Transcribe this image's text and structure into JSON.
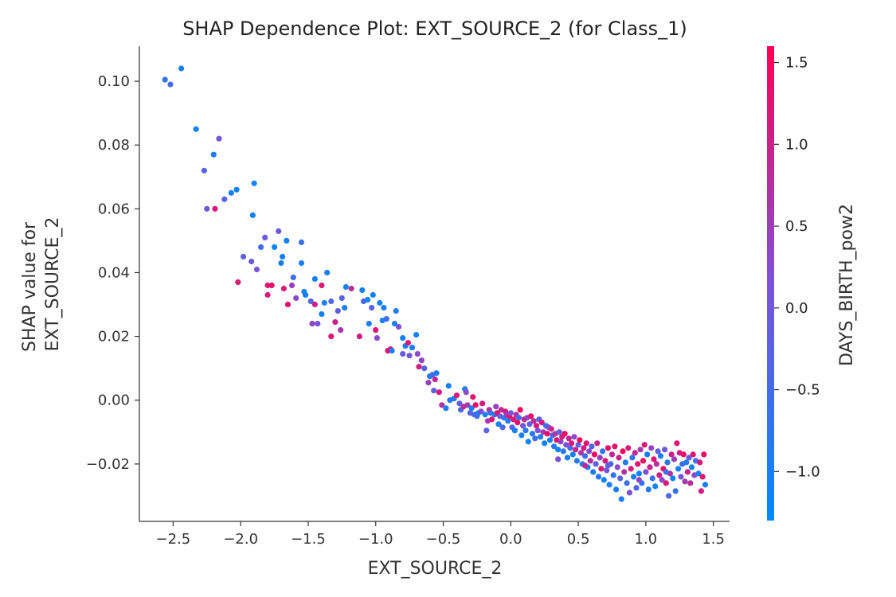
{
  "chart_data": {
    "type": "scatter",
    "title": "SHAP Dependence Plot: EXT_SOURCE_2 (for Class_1)",
    "xlabel": "EXT_SOURCE_2",
    "ylabel_lines": [
      "SHAP value for",
      "EXT_SOURCE_2"
    ],
    "xlim": [
      -2.75,
      1.62
    ],
    "ylim": [
      -0.038,
      0.111
    ],
    "xticks": [
      -2.5,
      -2.0,
      -1.5,
      -1.0,
      -0.5,
      0.0,
      0.5,
      1.0,
      1.5
    ],
    "xtick_labels": [
      "−2.5",
      "−2.0",
      "−1.5",
      "−1.0",
      "−0.5",
      "0.0",
      "0.5",
      "1.0",
      "1.5"
    ],
    "yticks": [
      -0.02,
      0.0,
      0.02,
      0.04,
      0.06,
      0.08,
      0.1
    ],
    "ytick_labels": [
      "−0.02",
      "0.00",
      "0.02",
      "0.04",
      "0.06",
      "0.08",
      "0.10"
    ],
    "grid": false,
    "colorbar": {
      "label": "DAYS_BIRTH_pow2",
      "range": [
        -1.3,
        1.6
      ],
      "ticks": [
        -1.0,
        -0.5,
        0.0,
        0.5,
        1.0,
        1.5
      ],
      "tick_labels": [
        "−1.0",
        "−0.5",
        "0.0",
        "0.5",
        "1.0",
        "1.5"
      ],
      "colors": [
        "#008afb",
        "#7c52d8",
        "#ff0052"
      ]
    },
    "points": [
      [
        -2.56,
        0.1005,
        -0.7
      ],
      [
        -2.52,
        0.099,
        -0.5
      ],
      [
        -2.44,
        0.104,
        -1.0
      ],
      [
        -2.33,
        0.085,
        -1.1
      ],
      [
        -2.27,
        0.072,
        -0.3
      ],
      [
        -2.25,
        0.06,
        0.0
      ],
      [
        -2.2,
        0.077,
        -1.0
      ],
      [
        -2.16,
        0.082,
        0.1
      ],
      [
        -2.19,
        0.06,
        1.2
      ],
      [
        -2.12,
        0.063,
        -0.3
      ],
      [
        -2.07,
        0.065,
        -1.0
      ],
      [
        -2.03,
        0.066,
        -1.1
      ],
      [
        -2.02,
        0.037,
        1.2
      ],
      [
        -1.98,
        0.045,
        -0.2
      ],
      [
        -1.92,
        0.0435,
        0.0
      ],
      [
        -1.9,
        0.068,
        -1.1
      ],
      [
        -1.91,
        0.058,
        -1.1
      ],
      [
        -1.88,
        0.041,
        0.1
      ],
      [
        -1.85,
        0.048,
        -0.5
      ],
      [
        -1.82,
        0.051,
        0.0
      ],
      [
        -1.8,
        0.036,
        1.2
      ],
      [
        -1.8,
        0.033,
        1.1
      ],
      [
        -1.77,
        0.036,
        1.4
      ],
      [
        -1.75,
        0.048,
        -1.1
      ],
      [
        -1.72,
        0.053,
        0.0
      ],
      [
        -1.7,
        0.043,
        -1.0
      ],
      [
        -1.69,
        0.045,
        -1.0
      ],
      [
        -1.68,
        0.035,
        1.2
      ],
      [
        -1.66,
        0.05,
        -1.1
      ],
      [
        -1.65,
        0.03,
        1.3
      ],
      [
        -1.62,
        0.036,
        0.5
      ],
      [
        -1.61,
        0.0385,
        -0.6
      ],
      [
        -1.59,
        0.032,
        0.3
      ],
      [
        -1.55,
        0.0495,
        -0.6
      ],
      [
        -1.55,
        0.043,
        -1.0
      ],
      [
        -1.53,
        0.034,
        -1.0
      ],
      [
        -1.52,
        0.033,
        -1.1
      ],
      [
        -1.48,
        0.031,
        -0.3
      ],
      [
        -1.47,
        0.024,
        0.4
      ],
      [
        -1.45,
        0.038,
        -1.1
      ],
      [
        -1.45,
        0.03,
        1.0
      ],
      [
        -1.43,
        0.024,
        0.1
      ],
      [
        -1.4,
        0.027,
        -1.1
      ],
      [
        -1.4,
        0.036,
        1.2
      ],
      [
        -1.38,
        0.0305,
        -1.0
      ],
      [
        -1.36,
        0.04,
        -1.0
      ],
      [
        -1.33,
        0.02,
        1.2
      ],
      [
        -1.33,
        0.031,
        -0.4
      ],
      [
        -1.3,
        0.0245,
        1.0
      ],
      [
        -1.28,
        0.028,
        -0.2
      ],
      [
        -1.26,
        0.022,
        0.6
      ],
      [
        -1.25,
        0.032,
        -0.3
      ],
      [
        -1.22,
        0.0355,
        -1.1
      ],
      [
        -1.23,
        0.029,
        -1.0
      ],
      [
        -1.18,
        0.035,
        0.8
      ],
      [
        -1.12,
        0.02,
        1.1
      ],
      [
        -1.1,
        0.0345,
        -1.1
      ],
      [
        -1.09,
        0.031,
        -0.4
      ],
      [
        -1.06,
        0.0315,
        -1.1
      ],
      [
        -1.05,
        0.024,
        -1.0
      ],
      [
        -1.03,
        0.029,
        -0.3
      ],
      [
        -1.02,
        0.033,
        -1.1
      ],
      [
        -1.0,
        0.022,
        1.2
      ],
      [
        -0.99,
        0.0195,
        0.3
      ],
      [
        -0.97,
        0.0305,
        -1.1
      ],
      [
        -0.95,
        0.025,
        -1.0
      ],
      [
        -0.94,
        0.029,
        -1.0
      ],
      [
        -0.92,
        0.0255,
        -0.6
      ],
      [
        -0.91,
        0.0155,
        1.3
      ],
      [
        -0.89,
        0.016,
        1.1
      ],
      [
        -0.88,
        0.0155,
        -1.0
      ],
      [
        -0.86,
        0.024,
        -1.0
      ],
      [
        -0.85,
        0.028,
        -0.9
      ],
      [
        -0.83,
        0.023,
        0.1
      ],
      [
        -0.8,
        0.0195,
        -1.1
      ],
      [
        -0.78,
        0.017,
        -1.0
      ],
      [
        -0.76,
        0.018,
        1.2
      ],
      [
        -0.75,
        0.014,
        0.0
      ],
      [
        -0.73,
        0.0165,
        -1.0
      ],
      [
        -0.7,
        0.0205,
        -1.1
      ],
      [
        -0.69,
        0.0145,
        0.3
      ],
      [
        -0.68,
        0.0105,
        1.1
      ],
      [
        -0.66,
        0.0125,
        0.4
      ],
      [
        -0.64,
        0.01,
        -0.3
      ],
      [
        -0.61,
        0.0055,
        0.5
      ],
      [
        -0.6,
        0.0075,
        -0.9
      ],
      [
        -0.58,
        0.008,
        -0.4
      ],
      [
        -0.57,
        0.003,
        -0.2
      ],
      [
        -0.55,
        0.0085,
        -1.0
      ],
      [
        -0.53,
        0.0025,
        1.1
      ],
      [
        -0.51,
        -0.0015,
        0.7
      ],
      [
        -0.48,
        -0.0025,
        -1.0
      ],
      [
        -0.45,
        0.0,
        -1.0
      ],
      [
        -0.42,
        0.0005,
        -0.8
      ],
      [
        -0.4,
        0.0015,
        1.2
      ],
      [
        -0.37,
        -0.003,
        -0.5
      ],
      [
        -0.35,
        -0.002,
        0.9
      ],
      [
        -0.34,
        0.0035,
        -1.0
      ],
      [
        -0.33,
        0.0025,
        0.3
      ],
      [
        -0.32,
        -0.0015,
        0.6
      ],
      [
        -0.3,
        -0.004,
        -0.2
      ],
      [
        -0.29,
        -0.0025,
        -1.1
      ],
      [
        -0.28,
        0.001,
        1.3
      ],
      [
        -0.27,
        -0.0045,
        -0.5
      ],
      [
        -0.26,
        -0.0015,
        1.4
      ],
      [
        -0.25,
        -0.005,
        -0.6
      ],
      [
        -0.24,
        -0.004,
        -0.9
      ],
      [
        -0.22,
        -0.0035,
        0.2
      ],
      [
        -0.21,
        -0.001,
        1.1
      ],
      [
        -0.19,
        -0.0045,
        -1.0
      ],
      [
        -0.18,
        -0.0095,
        -0.3
      ],
      [
        -0.17,
        -0.0065,
        0.6
      ],
      [
        -0.16,
        -0.003,
        0.8
      ],
      [
        -0.15,
        -0.004,
        -0.7
      ],
      [
        -0.14,
        -0.006,
        1.2
      ],
      [
        -0.12,
        -0.0045,
        -1.0
      ],
      [
        -0.11,
        -0.002,
        0.4
      ],
      [
        -0.1,
        -0.004,
        1.3
      ],
      [
        -0.09,
        -0.0075,
        -1.1
      ],
      [
        -0.08,
        -0.005,
        0.0
      ],
      [
        -0.07,
        -0.003,
        0.9
      ],
      [
        -0.06,
        -0.0085,
        -0.4
      ],
      [
        -0.05,
        -0.0055,
        -0.8
      ],
      [
        -0.04,
        -0.0035,
        1.1
      ],
      [
        -0.03,
        -0.0045,
        0.5
      ],
      [
        -0.02,
        -0.0065,
        -1.0
      ],
      [
        -0.01,
        -0.005,
        1.3
      ],
      [
        0.0,
        -0.004,
        0.1
      ],
      [
        0.01,
        -0.0085,
        -0.3
      ],
      [
        0.02,
        -0.006,
        1.2
      ],
      [
        0.03,
        -0.0095,
        -1.0
      ],
      [
        0.04,
        -0.0045,
        0.7
      ],
      [
        0.05,
        -0.007,
        1.4
      ],
      [
        0.06,
        -0.0055,
        -0.6
      ],
      [
        0.07,
        -0.003,
        1.5
      ],
      [
        0.08,
        -0.011,
        -1.0
      ],
      [
        0.09,
        -0.008,
        0.0
      ],
      [
        0.1,
        -0.006,
        1.0
      ],
      [
        0.11,
        -0.0095,
        -0.8
      ],
      [
        0.12,
        -0.0055,
        0.4
      ],
      [
        0.13,
        -0.013,
        -1.1
      ],
      [
        0.14,
        -0.0075,
        -0.2
      ],
      [
        0.15,
        -0.005,
        1.3
      ],
      [
        0.16,
        -0.0105,
        -0.9
      ],
      [
        0.17,
        -0.0065,
        0.8
      ],
      [
        0.18,
        -0.012,
        -0.5
      ],
      [
        0.19,
        -0.008,
        1.1
      ],
      [
        0.2,
        -0.0095,
        0.2
      ],
      [
        0.21,
        -0.006,
        -0.3
      ],
      [
        0.22,
        -0.0115,
        -1.0
      ],
      [
        0.23,
        -0.007,
        1.2
      ],
      [
        0.24,
        -0.01,
        0.6
      ],
      [
        0.25,
        -0.0135,
        -1.1
      ],
      [
        0.26,
        -0.008,
        -0.7
      ],
      [
        0.27,
        -0.0105,
        1.4
      ],
      [
        0.28,
        -0.0085,
        0.0
      ],
      [
        0.29,
        -0.0125,
        -1.0
      ],
      [
        0.3,
        -0.009,
        1.0
      ],
      [
        0.31,
        -0.011,
        -0.4
      ],
      [
        0.32,
        -0.0145,
        -0.9
      ],
      [
        0.33,
        -0.0105,
        0.7
      ],
      [
        0.34,
        -0.0125,
        1.3
      ],
      [
        0.35,
        -0.0155,
        -1.1
      ],
      [
        0.36,
        -0.01,
        -0.2
      ],
      [
        0.37,
        -0.013,
        0.4
      ],
      [
        0.38,
        -0.0115,
        1.1
      ],
      [
        0.39,
        -0.016,
        -0.8
      ],
      [
        0.4,
        -0.0105,
        1.4
      ],
      [
        0.41,
        -0.014,
        0.1
      ],
      [
        0.42,
        -0.018,
        -1.0
      ],
      [
        0.43,
        -0.012,
        0.9
      ],
      [
        0.44,
        -0.015,
        -0.5
      ],
      [
        0.45,
        -0.0135,
        1.2
      ],
      [
        0.46,
        -0.017,
        -1.1
      ],
      [
        0.47,
        -0.0115,
        0.3
      ],
      [
        0.48,
        -0.0155,
        1.0
      ],
      [
        0.49,
        -0.019,
        -0.9
      ],
      [
        0.5,
        -0.014,
        -0.3
      ],
      [
        0.51,
        -0.0125,
        1.5
      ],
      [
        0.52,
        -0.0165,
        0.6
      ],
      [
        0.53,
        -0.02,
        -1.0
      ],
      [
        0.54,
        -0.015,
        1.1
      ],
      [
        0.55,
        -0.0175,
        -0.6
      ],
      [
        0.56,
        -0.0135,
        1.3
      ],
      [
        0.57,
        -0.021,
        -1.1
      ],
      [
        0.58,
        -0.016,
        0.2
      ],
      [
        0.59,
        -0.019,
        0.8
      ],
      [
        0.6,
        -0.0145,
        -0.4
      ],
      [
        0.61,
        -0.0225,
        -1.0
      ],
      [
        0.62,
        -0.017,
        1.4
      ],
      [
        0.63,
        -0.02,
        -0.2
      ],
      [
        0.64,
        -0.0135,
        1.0
      ],
      [
        0.65,
        -0.024,
        -0.9
      ],
      [
        0.66,
        -0.018,
        0.5
      ],
      [
        0.67,
        -0.0215,
        1.2
      ],
      [
        0.68,
        -0.016,
        -0.7
      ],
      [
        0.69,
        -0.025,
        -1.1
      ],
      [
        0.7,
        -0.019,
        1.1
      ],
      [
        0.71,
        -0.022,
        0.0
      ],
      [
        0.72,
        -0.015,
        1.4
      ],
      [
        0.73,
        -0.0265,
        -1.0
      ],
      [
        0.74,
        -0.02,
        -0.5
      ],
      [
        0.75,
        -0.017,
        0.9
      ],
      [
        0.76,
        -0.0235,
        -0.8
      ],
      [
        0.77,
        -0.0145,
        1.3
      ],
      [
        0.78,
        -0.028,
        -1.1
      ],
      [
        0.79,
        -0.021,
        0.3
      ],
      [
        0.8,
        -0.018,
        1.0
      ],
      [
        0.81,
        -0.0245,
        -0.3
      ],
      [
        0.82,
        -0.031,
        -1.0
      ],
      [
        0.83,
        -0.016,
        1.5
      ],
      [
        0.84,
        -0.0225,
        0.7
      ],
      [
        0.85,
        -0.0195,
        -0.9
      ],
      [
        0.86,
        -0.026,
        -0.6
      ],
      [
        0.87,
        -0.015,
        1.2
      ],
      [
        0.88,
        -0.029,
        0.1
      ],
      [
        0.89,
        -0.0215,
        1.1
      ],
      [
        0.9,
        -0.018,
        -0.7
      ],
      [
        0.91,
        -0.024,
        -1.0
      ],
      [
        0.92,
        -0.0165,
        0.9
      ],
      [
        0.93,
        -0.0275,
        -0.4
      ],
      [
        0.94,
        -0.02,
        1.3
      ],
      [
        0.95,
        -0.023,
        -1.1
      ],
      [
        0.96,
        -0.0155,
        0.6
      ],
      [
        0.97,
        -0.026,
        -0.8
      ],
      [
        0.98,
        -0.019,
        1.4
      ],
      [
        0.99,
        -0.014,
        1.2
      ],
      [
        1.0,
        -0.0225,
        0.2
      ],
      [
        1.01,
        -0.017,
        -1.0
      ],
      [
        1.02,
        -0.028,
        -0.9
      ],
      [
        1.03,
        -0.021,
        1.0
      ],
      [
        1.04,
        -0.015,
        0.4
      ],
      [
        1.05,
        -0.0245,
        -0.6
      ],
      [
        1.06,
        -0.0185,
        1.3
      ],
      [
        1.07,
        -0.027,
        -1.1
      ],
      [
        1.08,
        -0.02,
        0.8
      ],
      [
        1.09,
        -0.016,
        -0.2
      ],
      [
        1.1,
        -0.0235,
        1.1
      ],
      [
        1.11,
        -0.0175,
        -1.0
      ],
      [
        1.12,
        -0.025,
        0.3
      ],
      [
        1.13,
        -0.0215,
        1.4
      ],
      [
        1.14,
        -0.0155,
        0.0
      ],
      [
        1.15,
        -0.026,
        1.2
      ],
      [
        1.16,
        -0.0195,
        -0.8
      ],
      [
        1.17,
        -0.03,
        -0.4
      ],
      [
        1.18,
        -0.023,
        0.7
      ],
      [
        1.19,
        -0.017,
        1.0
      ],
      [
        1.2,
        -0.0245,
        -1.1
      ],
      [
        1.21,
        -0.0185,
        0.5
      ],
      [
        1.22,
        -0.0285,
        -0.7
      ],
      [
        1.23,
        -0.0135,
        1.3
      ],
      [
        1.24,
        -0.0215,
        -1.0
      ],
      [
        1.25,
        -0.0165,
        1.1
      ],
      [
        1.26,
        -0.024,
        0.1
      ],
      [
        1.27,
        -0.02,
        -0.5
      ],
      [
        1.28,
        -0.017,
        1.4
      ],
      [
        1.29,
        -0.0255,
        0.6
      ],
      [
        1.3,
        -0.0195,
        -0.9
      ],
      [
        1.31,
        -0.0225,
        1.0
      ],
      [
        1.32,
        -0.018,
        -0.2
      ],
      [
        1.33,
        -0.026,
        0.8
      ],
      [
        1.34,
        -0.021,
        -1.1
      ],
      [
        1.35,
        -0.017,
        1.3
      ],
      [
        1.36,
        -0.0235,
        0.3
      ],
      [
        1.37,
        -0.019,
        -0.7
      ],
      [
        1.39,
        -0.023,
        -1.0
      ],
      [
        1.4,
        -0.0195,
        1.2
      ],
      [
        1.41,
        -0.0285,
        1.1
      ],
      [
        1.42,
        -0.024,
        1.3
      ],
      [
        1.43,
        -0.017,
        1.4
      ],
      [
        1.44,
        -0.0265,
        -1.0
      ],
      [
        -0.8,
        0.0145,
        -0.1
      ],
      [
        -0.56,
        0.0065,
        0.9
      ],
      [
        -0.46,
        0.0045,
        -1.1
      ],
      [
        -0.38,
        -0.001,
        -0.2
      ],
      [
        0.35,
        -0.0185,
        0.2
      ],
      [
        0.55,
        -0.0205,
        0.9
      ],
      [
        0.72,
        -0.0205,
        -0.1
      ],
      [
        0.95,
        -0.025,
        0.4
      ],
      [
        1.15,
        -0.0225,
        -0.6
      ]
    ]
  }
}
